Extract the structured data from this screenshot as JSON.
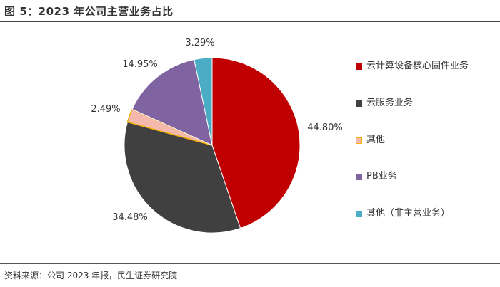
{
  "header": {
    "title": "图 5：2023 年公司主营业务占比"
  },
  "footer": {
    "source": "资料来源：公司 2023 年报，民生证券研究院"
  },
  "chart_data": {
    "type": "pie",
    "title": "图 5：2023 年公司主营业务占比",
    "slices": [
      {
        "name": "云计算设备核心固件业务",
        "value": 44.8,
        "label": "44.80%",
        "color": "#C00000"
      },
      {
        "name": "云服务业务",
        "value": 34.48,
        "label": "34.48%",
        "color": "#404040"
      },
      {
        "name": "其他",
        "value": 2.49,
        "label": "2.49%",
        "color": "#F4B8AC"
      },
      {
        "name": "PB业务",
        "value": 14.95,
        "label": "14.95%",
        "color": "#8064A2"
      },
      {
        "name": "其他（非主营业务）",
        "value": 3.29,
        "label": "3.29%",
        "color": "#4BACC6"
      }
    ],
    "start": "12 o'clock",
    "direction": "clockwise",
    "legend_position": "right"
  }
}
